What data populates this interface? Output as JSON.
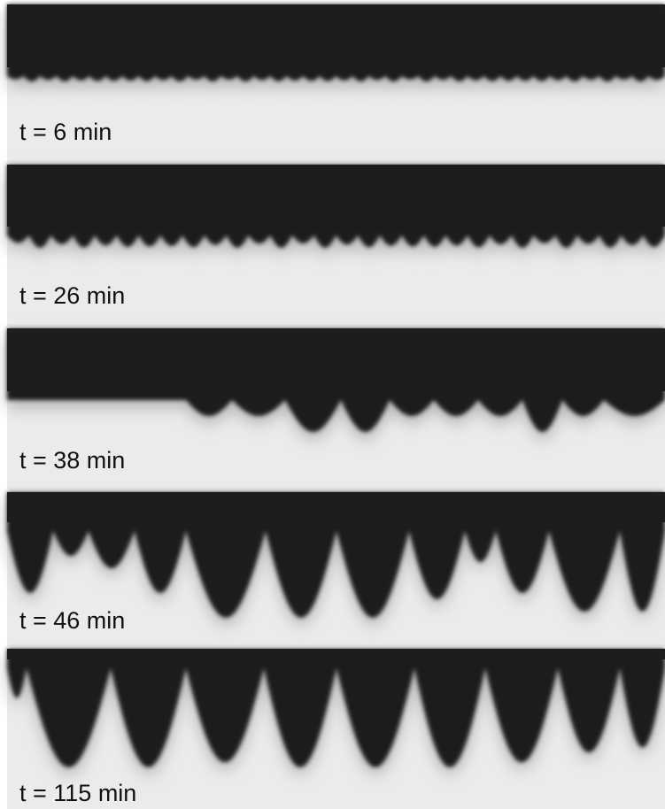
{
  "panels": [
    {
      "label": "t = 6 min"
    },
    {
      "label": "t = 26 min"
    },
    {
      "label": "t = 38 min"
    },
    {
      "label": "t = 46 min"
    },
    {
      "label": "t = 115 min"
    }
  ]
}
